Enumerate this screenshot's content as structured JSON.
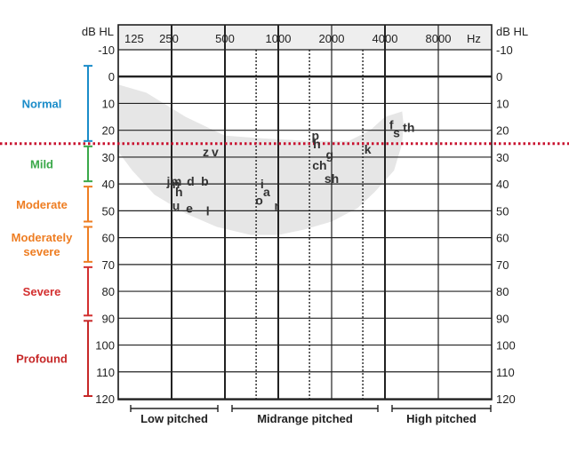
{
  "chart_data": {
    "type": "scatter",
    "title": "",
    "xlabel": "Hz",
    "ylabel": "dB HL",
    "x_scale": "log2",
    "x_ticks": [
      "125",
      "250",
      "500",
      "1000",
      "2000",
      "4000",
      "8000"
    ],
    "x_tick_values": [
      125,
      250,
      500,
      1000,
      2000,
      4000,
      8000
    ],
    "x_intermediate_values": [
      750,
      1500,
      3000
    ],
    "ylim": [
      -10,
      120
    ],
    "y_ticks": [
      "-10",
      "0",
      "10",
      "20",
      "30",
      "40",
      "50",
      "60",
      "70",
      "80",
      "90",
      "100",
      "110",
      "120"
    ],
    "y_tick_values": [
      -10,
      0,
      10,
      20,
      30,
      40,
      50,
      60,
      70,
      80,
      90,
      100,
      110,
      120
    ],
    "y_inverted": true,
    "reference_line": {
      "db": 25,
      "style": "dotted",
      "color": "#c8102e"
    },
    "speech_banana": {
      "color": "#e6e6e6",
      "outline": [
        [
          125,
          3
        ],
        [
          180,
          6
        ],
        [
          300,
          15
        ],
        [
          500,
          22
        ],
        [
          800,
          23
        ],
        [
          1500,
          24
        ],
        [
          2500,
          24
        ],
        [
          3300,
          20
        ],
        [
          4000,
          15
        ],
        [
          5000,
          13
        ],
        [
          5100,
          18
        ],
        [
          5000,
          25
        ],
        [
          4500,
          35
        ],
        [
          3500,
          43
        ],
        [
          2800,
          49
        ],
        [
          2000,
          54
        ],
        [
          1400,
          57
        ],
        [
          1000,
          59
        ],
        [
          700,
          59
        ],
        [
          450,
          56
        ],
        [
          300,
          51
        ],
        [
          200,
          44
        ],
        [
          150,
          35
        ],
        [
          125,
          28
        ]
      ]
    },
    "hearing_levels": [
      {
        "name": "Normal",
        "range": [
          -10,
          25
        ],
        "color": "#1a8cc9"
      },
      {
        "name": "Mild",
        "range": [
          25,
          40
        ],
        "color": "#3aa849"
      },
      {
        "name": "Moderate",
        "range": [
          40,
          55
        ],
        "color": "#ee7d22"
      },
      {
        "name": "Moderately severe",
        "range": [
          55,
          70
        ],
        "color": "#ee7d22"
      },
      {
        "name": "Severe",
        "range": [
          70,
          90
        ],
        "color": "#d32f2f"
      },
      {
        "name": "Profound",
        "range": [
          90,
          120
        ],
        "color": "#c62828"
      }
    ],
    "pitch_groups": [
      {
        "name": "Low pitched",
        "range_hz": [
          125,
          500
        ]
      },
      {
        "name": "Midrange pitched",
        "range_hz": [
          500,
          4000
        ]
      },
      {
        "name": "High pitched",
        "range_hz": [
          4000,
          8000
        ]
      }
    ],
    "speech_sounds": [
      {
        "label": "z",
        "hz": 390,
        "db": 28
      },
      {
        "label": "v",
        "hz": 440,
        "db": 28
      },
      {
        "label": "j",
        "hz": 240,
        "db": 39
      },
      {
        "label": "m",
        "hz": 265,
        "db": 39
      },
      {
        "label": "d",
        "hz": 320,
        "db": 39
      },
      {
        "label": "b",
        "hz": 385,
        "db": 39
      },
      {
        "label": "n",
        "hz": 265,
        "db": 40
      },
      {
        "label": "h",
        "hz": 275,
        "db": 43
      },
      {
        "label": "u",
        "hz": 265,
        "db": 48
      },
      {
        "label": "e",
        "hz": 315,
        "db": 49
      },
      {
        "label": "l",
        "hz": 400,
        "db": 50
      },
      {
        "label": "i",
        "hz": 810,
        "db": 40
      },
      {
        "label": "a",
        "hz": 860,
        "db": 43
      },
      {
        "label": "o",
        "hz": 780,
        "db": 46
      },
      {
        "label": "r",
        "hz": 980,
        "db": 48
      },
      {
        "label": "p",
        "hz": 1620,
        "db": 22
      },
      {
        "label": "h",
        "hz": 1650,
        "db": 25
      },
      {
        "label": "g",
        "hz": 1950,
        "db": 29
      },
      {
        "label": "ch",
        "hz": 1710,
        "db": 33
      },
      {
        "label": "sh",
        "hz": 2000,
        "db": 38
      },
      {
        "label": "k",
        "hz": 3200,
        "db": 27
      },
      {
        "label": "f",
        "hz": 4350,
        "db": 18
      },
      {
        "label": "s",
        "hz": 4650,
        "db": 21
      },
      {
        "label": "th",
        "hz": 5450,
        "db": 19
      }
    ]
  }
}
